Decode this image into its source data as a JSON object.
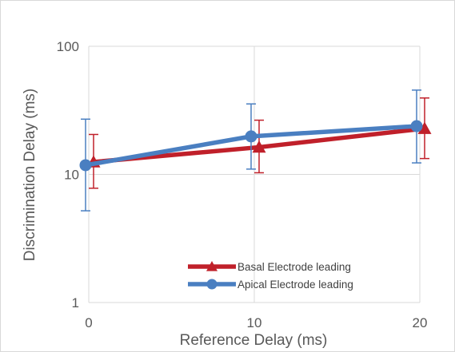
{
  "chart_data": {
    "type": "line",
    "xlabel": "Reference Delay (ms)",
    "ylabel": "Discrimination Delay (ms)",
    "x_ticks": [
      "0",
      "10",
      "20"
    ],
    "y_ticks": [
      "1",
      "10",
      "100"
    ],
    "xlim": [
      0,
      20
    ],
    "ylim": [
      1,
      100
    ],
    "y_scale": "log",
    "grid": true,
    "legend_position": "bottom-center",
    "series": [
      {
        "name": "Basal Electrode leading",
        "color": "#c0202a",
        "marker": "triangle",
        "x": [
          0,
          10,
          20
        ],
        "y": [
          12.5,
          16.3,
          22.8
        ],
        "err_low": [
          7.8,
          10.3,
          13.3
        ],
        "err_high": [
          20.5,
          26.5,
          39.5
        ]
      },
      {
        "name": "Apical Electrode leading",
        "color": "#4a7fc1",
        "marker": "circle",
        "x": [
          0,
          10,
          20
        ],
        "y": [
          11.8,
          19.8,
          23.8
        ],
        "err_low": [
          5.2,
          11.0,
          12.3
        ],
        "err_high": [
          27.0,
          35.5,
          45.5
        ]
      }
    ]
  }
}
